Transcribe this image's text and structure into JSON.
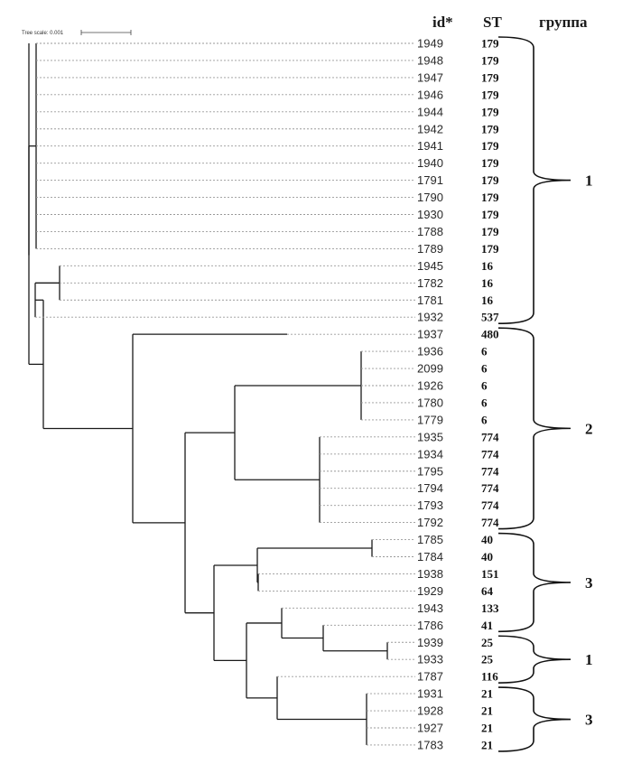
{
  "headers": {
    "id": "id*",
    "st": "ST",
    "group": "группа"
  },
  "scale_bar": {
    "label": "Tree scale: 0.001"
  },
  "leaves": [
    {
      "id": "1949",
      "st": "179"
    },
    {
      "id": "1948",
      "st": "179"
    },
    {
      "id": "1947",
      "st": "179"
    },
    {
      "id": "1946",
      "st": "179"
    },
    {
      "id": "1944",
      "st": "179"
    },
    {
      "id": "1942",
      "st": "179"
    },
    {
      "id": "1941",
      "st": "179"
    },
    {
      "id": "1940",
      "st": "179"
    },
    {
      "id": "1791",
      "st": "179"
    },
    {
      "id": "1790",
      "st": "179"
    },
    {
      "id": "1930",
      "st": "179"
    },
    {
      "id": "1788",
      "st": "179"
    },
    {
      "id": "1789",
      "st": "179"
    },
    {
      "id": "1945",
      "st": "16"
    },
    {
      "id": "1782",
      "st": "16"
    },
    {
      "id": "1781",
      "st": "16"
    },
    {
      "id": "1932",
      "st": "537"
    },
    {
      "id": "1937",
      "st": "480"
    },
    {
      "id": "1936",
      "st": "6"
    },
    {
      "id": "2099",
      "st": "6"
    },
    {
      "id": "1926",
      "st": "6"
    },
    {
      "id": "1780",
      "st": "6"
    },
    {
      "id": "1779",
      "st": "6"
    },
    {
      "id": "1935",
      "st": "774"
    },
    {
      "id": "1934",
      "st": "774"
    },
    {
      "id": "1795",
      "st": "774"
    },
    {
      "id": "1794",
      "st": "774"
    },
    {
      "id": "1793",
      "st": "774"
    },
    {
      "id": "1792",
      "st": "774"
    },
    {
      "id": "1785",
      "st": "40"
    },
    {
      "id": "1784",
      "st": "40"
    },
    {
      "id": "1938",
      "st": "151"
    },
    {
      "id": "1929",
      "st": "64"
    },
    {
      "id": "1943",
      "st": "133"
    },
    {
      "id": "1786",
      "st": "41"
    },
    {
      "id": "1939",
      "st": "25"
    },
    {
      "id": "1933",
      "st": "25"
    },
    {
      "id": "1787",
      "st": "116"
    },
    {
      "id": "1931",
      "st": "21"
    },
    {
      "id": "1928",
      "st": "21"
    },
    {
      "id": "1927",
      "st": "21"
    },
    {
      "id": "1783",
      "st": "21"
    }
  ],
  "groups": [
    {
      "label": "1",
      "from": 0,
      "to": 16
    },
    {
      "label": "2",
      "from": 17,
      "to": 28
    },
    {
      "label": "3",
      "from": 29,
      "to": 34
    },
    {
      "label": "1",
      "from": 35,
      "to": 37
    },
    {
      "label": "3",
      "from": 38,
      "to": 41
    }
  ]
}
